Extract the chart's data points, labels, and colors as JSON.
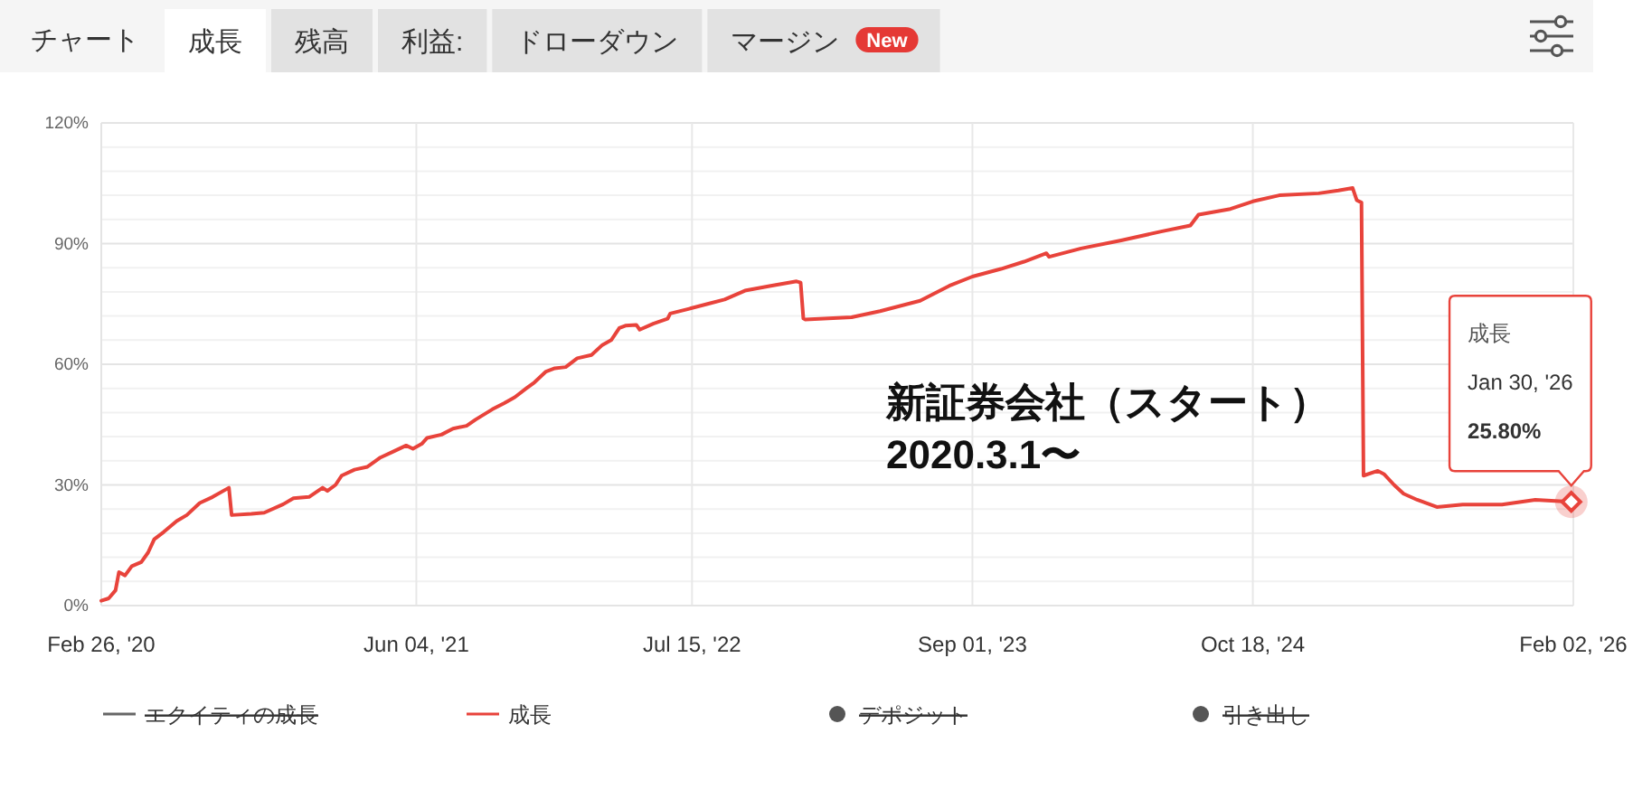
{
  "chart_data": {
    "type": "line",
    "title": "チャート",
    "x": [
      "2020-02-26",
      "2020-03-08",
      "2020-03-18",
      "2020-03-23",
      "2020-04-01",
      "2020-04-11",
      "2020-04-25",
      "2020-05-05",
      "2020-05-14",
      "2020-05-28",
      "2020-06-16",
      "2020-07-01",
      "2020-07-20",
      "2020-08-08",
      "2020-09-01",
      "2020-09-05",
      "2020-10-04",
      "2020-10-23",
      "2020-11-20",
      "2020-12-05",
      "2020-12-28",
      "2021-01-17",
      "2021-01-24",
      "2021-02-05",
      "2021-02-14",
      "2021-03-05",
      "2021-03-24",
      "2021-04-12",
      "2021-05-01",
      "2021-05-20",
      "2021-05-30",
      "2021-06-12",
      "2021-06-20",
      "2021-07-11",
      "2021-07-28",
      "2021-08-17",
      "2021-08-30",
      "2021-09-24",
      "2021-10-11",
      "2021-10-27",
      "2021-11-13",
      "2021-11-25",
      "2021-12-12",
      "2021-12-25",
      "2022-01-10",
      "2022-01-27",
      "2022-02-17",
      "2022-03-05",
      "2022-03-18",
      "2022-03-30",
      "2022-04-08",
      "2022-04-24",
      "2022-04-29",
      "2022-05-19",
      "2022-06-09",
      "2022-06-13",
      "2022-07-11",
      "2022-08-07",
      "2022-09-01",
      "2022-10-01",
      "2022-11-08",
      "2022-12-16",
      "2022-12-22",
      "2022-12-26",
      "2022-12-29",
      "2023-03-07",
      "2023-04-18",
      "2023-06-16",
      "2023-07-29",
      "2023-09-01",
      "2023-10-13",
      "2023-11-16",
      "2023-12-19",
      "2023-12-23",
      "2024-02-08",
      "2024-04-07",
      "2024-06-05",
      "2024-07-18",
      "2024-07-30",
      "2024-09-15",
      "2024-10-18",
      "2024-11-26",
      "2025-01-23",
      "2025-02-21",
      "2025-03-14",
      "2025-03-20",
      "2025-03-27",
      "2025-03-30",
      "2025-04-20",
      "2025-04-29",
      "2025-05-14",
      "2025-05-28",
      "2025-06-17",
      "2025-07-16",
      "2025-08-23",
      "2025-10-20",
      "2025-12-08",
      "2026-01-30"
    ],
    "series": [
      {
        "name": "エクイティの成長",
        "type": "line",
        "color": "#666666",
        "values": [
          null,
          null,
          null,
          null,
          null,
          null,
          null,
          null,
          null,
          null,
          null,
          null,
          null,
          null,
          null,
          null,
          null,
          null,
          null,
          null,
          null,
          null,
          null,
          null,
          null,
          null,
          null,
          null,
          null,
          null,
          null,
          null,
          null,
          null,
          null,
          null,
          null,
          null,
          null,
          null,
          null,
          null,
          null,
          null,
          null,
          null,
          null,
          null,
          null,
          null,
          null,
          null,
          null,
          null,
          null,
          null,
          null,
          null,
          null,
          null,
          null,
          null,
          null,
          null,
          null,
          null,
          null,
          null,
          null,
          null,
          null,
          null,
          null,
          null,
          null,
          null,
          null,
          null,
          null,
          null,
          null,
          null,
          null,
          null,
          null,
          null,
          null,
          null,
          null,
          null,
          null,
          null,
          null,
          null,
          null,
          null,
          null,
          null
        ]
      },
      {
        "name": "成長",
        "type": "line",
        "color": "#e8433b",
        "values": [
          1.2,
          1.8,
          3.8,
          8.3,
          7.5,
          9.8,
          10.8,
          13.2,
          16.5,
          18.3,
          21.0,
          22.5,
          25.5,
          27.0,
          29.3,
          22.5,
          22.8,
          23.1,
          25.2,
          26.7,
          27.0,
          29.3,
          28.5,
          30.0,
          32.3,
          33.8,
          34.5,
          36.8,
          38.3,
          39.8,
          39.0,
          40.2,
          41.7,
          42.5,
          44.0,
          44.7,
          46.2,
          48.8,
          50.3,
          51.8,
          54.0,
          55.5,
          58.2,
          59.0,
          59.3,
          61.5,
          62.3,
          64.8,
          66.0,
          69.0,
          69.6,
          69.8,
          68.6,
          70.1,
          71.3,
          72.6,
          73.8,
          75.0,
          76.1,
          78.3,
          79.5,
          80.6,
          80.3,
          71.4,
          71.1,
          71.7,
          73.2,
          75.8,
          79.5,
          81.8,
          83.7,
          85.5,
          87.6,
          86.7,
          88.8,
          90.8,
          93.0,
          94.5,
          97.2,
          98.6,
          100.5,
          102.0,
          102.5,
          103.2,
          103.8,
          100.8,
          100.2,
          32.3,
          33.5,
          32.7,
          30.0,
          27.8,
          26.3,
          24.5,
          25.1,
          25.1,
          26.3,
          25.8
        ]
      },
      {
        "name": "デポジット",
        "type": "scatter",
        "color": "#555555",
        "values": [
          null,
          null,
          null,
          null,
          null,
          null,
          null,
          null,
          null,
          null,
          null,
          null,
          null,
          null,
          null,
          null,
          null,
          null,
          null,
          null,
          null,
          null,
          null,
          null,
          null,
          null,
          null,
          null,
          null,
          null,
          null,
          null,
          null,
          null,
          null,
          null,
          null,
          null,
          null,
          null,
          null,
          null,
          null,
          null,
          null,
          null,
          null,
          null,
          null,
          null,
          null,
          null,
          null,
          null,
          null,
          null,
          null,
          null,
          null,
          null,
          null,
          null,
          null,
          null,
          null,
          null,
          null,
          null,
          null,
          null,
          null,
          null,
          null,
          null,
          null,
          null,
          null,
          null,
          null,
          null,
          null,
          null,
          null,
          null,
          null,
          null,
          null,
          null,
          null,
          null,
          null,
          null,
          null,
          null,
          null,
          null,
          null,
          null
        ]
      },
      {
        "name": "引き出し",
        "type": "scatter",
        "color": "#555555",
        "values": [
          null,
          null,
          null,
          null,
          null,
          null,
          null,
          null,
          null,
          null,
          null,
          null,
          null,
          null,
          null,
          null,
          null,
          null,
          null,
          null,
          null,
          null,
          null,
          null,
          null,
          null,
          null,
          null,
          null,
          null,
          null,
          null,
          null,
          null,
          null,
          null,
          null,
          null,
          null,
          null,
          null,
          null,
          null,
          null,
          null,
          null,
          null,
          null,
          null,
          null,
          null,
          null,
          null,
          null,
          null,
          null,
          null,
          null,
          null,
          null,
          null,
          null,
          null,
          null,
          null,
          null,
          null,
          null,
          null,
          null,
          null,
          null,
          null,
          null,
          null,
          null,
          null,
          null,
          null,
          null,
          null,
          null,
          null,
          null,
          null,
          null,
          null,
          null,
          null,
          null,
          null,
          null,
          null,
          null,
          null,
          null,
          null,
          null
        ]
      }
    ],
    "xlim": [
      "2020-02-26",
      "2026-02-02"
    ],
    "xticks": [
      {
        "value": "2020-02-26",
        "label": "Feb 26, '20"
      },
      {
        "value": "2021-06-04",
        "label": "Jun 04, '21"
      },
      {
        "value": "2022-07-15",
        "label": "Jul 15, '22"
      },
      {
        "value": "2023-09-01",
        "label": "Sep 01, '23"
      },
      {
        "value": "2024-10-18",
        "label": "Oct 18, '24"
      },
      {
        "value": "2026-02-02",
        "label": "Feb 02, '26"
      }
    ],
    "ylim": [
      0,
      120
    ],
    "yticks": [
      {
        "value": 0,
        "label": "0%"
      },
      {
        "value": 6,
        "label": null
      },
      {
        "value": 12,
        "label": null
      },
      {
        "value": 18,
        "label": null
      },
      {
        "value": 24,
        "label": null
      },
      {
        "value": 30,
        "label": "30%"
      },
      {
        "value": 36,
        "label": null
      },
      {
        "value": 42,
        "label": null
      },
      {
        "value": 48,
        "label": null
      },
      {
        "value": 54,
        "label": null
      },
      {
        "value": 60,
        "label": "60%"
      },
      {
        "value": 66,
        "label": null
      },
      {
        "value": 72,
        "label": null
      },
      {
        "value": 78,
        "label": null
      },
      {
        "value": 84,
        "label": null
      },
      {
        "value": 90,
        "label": "90%"
      },
      {
        "value": 96,
        "label": null
      },
      {
        "value": 102,
        "label": null
      },
      {
        "value": 108,
        "label": null
      },
      {
        "value": 114,
        "label": null
      },
      {
        "value": 120,
        "label": "120%"
      }
    ],
    "grid": true,
    "legend": "bottom",
    "annotations": [
      "成長",
      "残高",
      "利益:",
      "ドローダウン",
      "マージン",
      "New",
      "新証券会社（スタート）\n2020.3.1〜",
      {
        "text": "成長\nJan 30, '26\n25.80%",
        "x": "2026-01-30",
        "y": 25.8
      }
    ]
  }
}
